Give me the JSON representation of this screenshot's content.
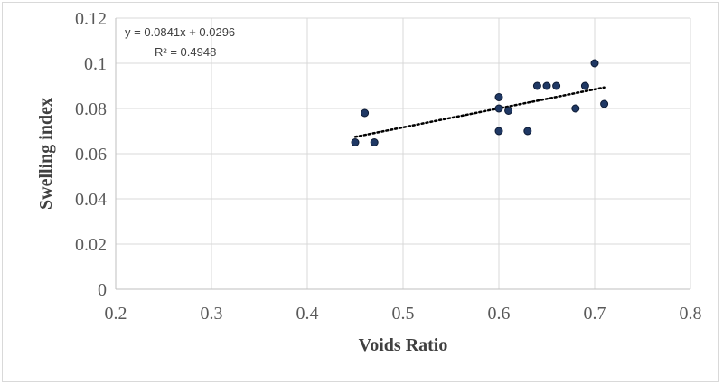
{
  "chart_data": {
    "type": "scatter",
    "xlabel": "Voids Ratio",
    "ylabel": "Swelling index",
    "xlim": [
      0.2,
      0.8
    ],
    "ylim": [
      0,
      0.12
    ],
    "xticks": [
      "0.2",
      "0.3",
      "0.4",
      "0.5",
      "0.6",
      "0.7",
      "0.8"
    ],
    "yticks": [
      "0",
      "0.02",
      "0.04",
      "0.06",
      "0.08",
      "0.1",
      "0.12"
    ],
    "grid": "vertical and horizontal",
    "marker_color": "#1f3864",
    "trendline": {
      "style": "dotted",
      "slope": 0.0841,
      "intercept": 0.0296,
      "x_range": [
        0.45,
        0.71
      ],
      "equation": "y = 0.0841x + 0.0296",
      "r_squared": "R² = 0.4948"
    },
    "points": [
      {
        "x": 0.45,
        "y": 0.065
      },
      {
        "x": 0.46,
        "y": 0.078
      },
      {
        "x": 0.47,
        "y": 0.065
      },
      {
        "x": 0.6,
        "y": 0.085
      },
      {
        "x": 0.6,
        "y": 0.08
      },
      {
        "x": 0.6,
        "y": 0.07
      },
      {
        "x": 0.61,
        "y": 0.079
      },
      {
        "x": 0.63,
        "y": 0.07
      },
      {
        "x": 0.64,
        "y": 0.09
      },
      {
        "x": 0.65,
        "y": 0.09
      },
      {
        "x": 0.66,
        "y": 0.09
      },
      {
        "x": 0.68,
        "y": 0.08
      },
      {
        "x": 0.69,
        "y": 0.09
      },
      {
        "x": 0.7,
        "y": 0.1
      },
      {
        "x": 0.71,
        "y": 0.082
      }
    ]
  }
}
